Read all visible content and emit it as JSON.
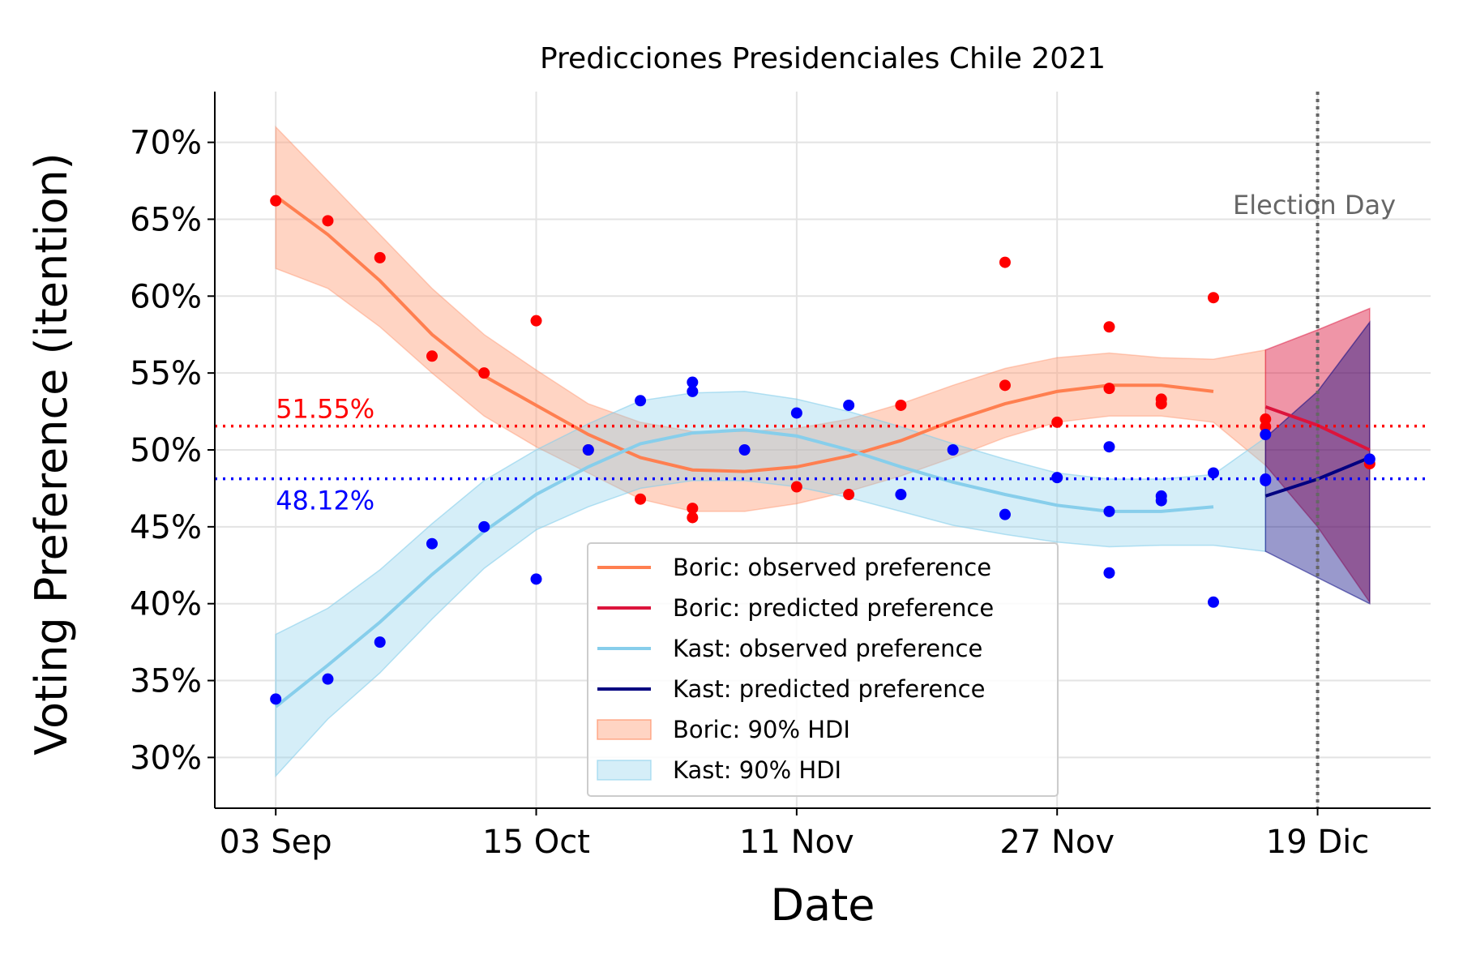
{
  "chart_data": {
    "type": "line",
    "title": "Predicciones Presidenciales Chile 2021",
    "xlabel": "Date",
    "ylabel": "Voting Preference (itention)",
    "x_ticks": [
      "03 Sep",
      "15 Oct",
      "11 Nov",
      "27 Nov",
      "19 Dic"
    ],
    "y_ticks": [
      "30%",
      "35%",
      "40%",
      "45%",
      "50%",
      "55%",
      "60%",
      "65%",
      "70%"
    ],
    "ylim": [
      26.7,
      73.3
    ],
    "xlim": [
      -1.17,
      22.17
    ],
    "grid": true,
    "legend_placement": "lower center",
    "colors": {
      "boric_observed": "#ff7f50",
      "boric_predicted": "#dc143c",
      "boric_hdi": "#ffa07a",
      "boric_points": "#ff0000",
      "kast_observed": "#87ceeb",
      "kast_predicted": "#000080",
      "kast_hdi": "#87ceeb",
      "kast_points": "#0000ff",
      "election_day": "#666666"
    },
    "election_day": {
      "x": 20,
      "label": "Election Day"
    },
    "reference_lines": [
      {
        "value": 51.55,
        "label": "51.55%",
        "color": "#ff0000"
      },
      {
        "value": 48.12,
        "label": "48.12%",
        "color": "#0000ff"
      }
    ],
    "series": [
      {
        "name": "Boric: observed preference",
        "role": "line",
        "x": [
          0,
          1,
          2,
          3,
          4,
          5,
          6,
          7,
          8,
          9,
          10,
          11,
          12,
          13,
          14,
          15,
          16,
          17,
          18
        ],
        "y": [
          66.5,
          64.0,
          61.0,
          57.5,
          54.8,
          52.9,
          51.0,
          49.5,
          48.7,
          48.6,
          48.9,
          49.6,
          50.6,
          51.9,
          53.0,
          53.8,
          54.2,
          54.2,
          53.8
        ]
      },
      {
        "name": "Boric: predicted preference",
        "role": "line",
        "x": [
          19,
          20,
          21
        ],
        "y": [
          52.8,
          51.6,
          50.0
        ]
      },
      {
        "name": "Kast: observed preference",
        "role": "line",
        "x": [
          0,
          1,
          2,
          3,
          4,
          5,
          6,
          7,
          8,
          9,
          10,
          11,
          12,
          13,
          14,
          15,
          16,
          17,
          18
        ],
        "y": [
          33.3,
          36.0,
          38.8,
          41.9,
          44.7,
          47.1,
          48.9,
          50.4,
          51.1,
          51.3,
          50.9,
          50.0,
          48.9,
          47.9,
          47.1,
          46.4,
          46.0,
          46.0,
          46.3
        ]
      },
      {
        "name": "Kast: predicted preference",
        "role": "line",
        "x": [
          19,
          20,
          21
        ],
        "y": [
          47.0,
          48.1,
          49.5
        ]
      },
      {
        "name": "Boric: 90% HDI",
        "role": "band",
        "x": [
          0,
          1,
          2,
          3,
          4,
          5,
          6,
          7,
          8,
          9,
          10,
          11,
          12,
          13,
          14,
          15,
          16,
          17,
          18,
          19
        ],
        "lower": [
          61.8,
          60.5,
          58.0,
          55.0,
          52.2,
          50.2,
          48.5,
          46.8,
          46.0,
          46.0,
          46.5,
          47.3,
          48.3,
          49.5,
          50.8,
          51.8,
          52.2,
          52.2,
          51.8,
          49.0
        ],
        "upper": [
          71.0,
          67.5,
          64.0,
          60.5,
          57.5,
          55.2,
          53.0,
          51.8,
          51.2,
          51.2,
          51.4,
          52.0,
          53.0,
          54.2,
          55.3,
          56.0,
          56.3,
          56.0,
          55.9,
          56.5
        ]
      },
      {
        "name": "Kast: 90% HDI",
        "role": "band",
        "x": [
          0,
          1,
          2,
          3,
          4,
          5,
          6,
          7,
          8,
          9,
          10,
          11,
          12,
          13,
          14,
          15,
          16,
          17,
          18,
          19
        ],
        "lower": [
          28.8,
          32.5,
          35.5,
          39.0,
          42.3,
          44.8,
          46.3,
          47.5,
          48.0,
          48.0,
          47.6,
          46.9,
          46.0,
          45.1,
          44.5,
          44.0,
          43.7,
          43.8,
          43.8,
          43.4
        ],
        "upper": [
          38.0,
          39.7,
          42.2,
          45.2,
          48.0,
          50.0,
          51.7,
          53.2,
          53.7,
          53.8,
          53.3,
          52.5,
          51.5,
          50.4,
          49.4,
          48.5,
          48.1,
          48.1,
          48.4,
          50.8
        ]
      },
      {
        "name": "Boric: predicted HDI",
        "role": "band",
        "x": [
          19,
          20,
          21
        ],
        "lower": [
          49.0,
          45.0,
          40.1
        ],
        "upper": [
          56.5,
          57.8,
          59.2
        ]
      },
      {
        "name": "Kast: predicted HDI",
        "role": "band",
        "x": [
          19,
          20,
          21
        ],
        "lower": [
          43.4,
          41.7,
          40.0
        ],
        "upper": [
          50.8,
          53.8,
          58.3
        ]
      },
      {
        "name": "Boric polls",
        "role": "points",
        "x": [
          0,
          1,
          2,
          3,
          4,
          5,
          6,
          7,
          8,
          8,
          10,
          11,
          12,
          14,
          14,
          15,
          16,
          16,
          17,
          17,
          18,
          19,
          19,
          21
        ],
        "y": [
          66.2,
          64.9,
          62.5,
          56.1,
          55.0,
          58.4,
          50.0,
          46.8,
          46.2,
          45.6,
          47.6,
          47.1,
          52.9,
          62.2,
          54.2,
          51.8,
          58.0,
          54.0,
          53.3,
          53.0,
          59.9,
          51.5,
          52.0,
          49.1
        ]
      },
      {
        "name": "Kast polls",
        "role": "points",
        "x": [
          0,
          1,
          2,
          3,
          4,
          5,
          6,
          7,
          8,
          8,
          9,
          10,
          11,
          12,
          13,
          14,
          15,
          16,
          16,
          16,
          17,
          17,
          18,
          18,
          19,
          19,
          19,
          21
        ],
        "y": [
          33.8,
          35.1,
          37.5,
          43.9,
          45.0,
          41.6,
          50.0,
          53.2,
          54.4,
          53.8,
          50.0,
          52.4,
          52.9,
          47.1,
          50.0,
          45.8,
          48.2,
          50.2,
          46.0,
          42.0,
          47.0,
          46.7,
          48.5,
          40.1,
          51.0,
          48.1,
          48.0,
          49.4
        ]
      }
    ],
    "legend": [
      "Boric: observed preference",
      "Boric: predicted preference",
      "Kast: observed preference",
      "Kast: predicted preference",
      "Boric: 90% HDI",
      "Kast: 90% HDI"
    ]
  }
}
